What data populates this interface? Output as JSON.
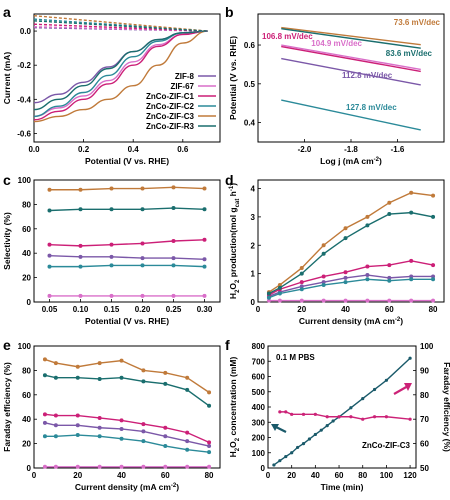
{
  "colors": {
    "ZIF-8": "#7b58a8",
    "ZIF-67": "#d96fc9",
    "ZnCo-ZIF-C1": "#cc1f77",
    "ZnCo-ZIF-C2": "#2b8a99",
    "ZnCo-ZIF-C3": "#c07a3a",
    "ZnCo-ZIF-R3": "#1a6e6e",
    "f_concentration": "#1a5a6a",
    "f_fe": "#cc2277"
  },
  "chart_data": [
    {
      "panel": "a",
      "type": "line",
      "xlabel": "Potential (V vs. RHE)",
      "ylabel": "Current (mA)",
      "xticks": [
        "0.0",
        "0.2",
        "0.4",
        "0.6"
      ],
      "yticks": [
        "-0.6",
        "-0.4",
        "-0.2",
        "0.0"
      ],
      "xlim": [
        0.0,
        0.75
      ],
      "ylim": [
        -0.65,
        0.1
      ],
      "legend": [
        "ZIF-8",
        "ZIF-67",
        "ZnCo-ZIF-C1",
        "ZnCo-ZIF-C2",
        "ZnCo-ZIF-C3",
        "ZnCo-ZIF-R3"
      ],
      "legend_position": "right",
      "series": [
        {
          "name": "ZIF-8",
          "x": [
            0.0,
            0.1,
            0.2,
            0.3,
            0.4,
            0.5,
            0.6,
            0.7
          ],
          "y": [
            -0.42,
            -0.37,
            -0.3,
            -0.21,
            -0.12,
            -0.05,
            -0.01,
            0.0
          ]
        },
        {
          "name": "ZIF-67",
          "x": [
            0.0,
            0.1,
            0.2,
            0.3,
            0.4,
            0.5,
            0.6,
            0.7
          ],
          "y": [
            -0.5,
            -0.45,
            -0.38,
            -0.29,
            -0.18,
            -0.08,
            -0.02,
            0.0
          ]
        },
        {
          "name": "ZnCo-ZIF-C1",
          "x": [
            0.0,
            0.1,
            0.2,
            0.3,
            0.4,
            0.5,
            0.6,
            0.7
          ],
          "y": [
            -0.52,
            -0.47,
            -0.4,
            -0.31,
            -0.2,
            -0.09,
            -0.02,
            0.0
          ]
        },
        {
          "name": "ZnCo-ZIF-C2",
          "x": [
            0.0,
            0.1,
            0.2,
            0.3,
            0.4,
            0.5,
            0.6,
            0.7
          ],
          "y": [
            -0.5,
            -0.44,
            -0.36,
            -0.26,
            -0.15,
            -0.06,
            -0.01,
            0.0
          ]
        },
        {
          "name": "ZnCo-ZIF-C3",
          "x": [
            0.0,
            0.1,
            0.2,
            0.3,
            0.4,
            0.5,
            0.6,
            0.7
          ],
          "y": [
            -0.53,
            -0.5,
            -0.46,
            -0.4,
            -0.32,
            -0.2,
            -0.07,
            0.0
          ]
        },
        {
          "name": "ZnCo-ZIF-R3",
          "x": [
            0.0,
            0.1,
            0.2,
            0.3,
            0.4,
            0.5,
            0.6,
            0.7
          ],
          "y": [
            -0.46,
            -0.4,
            -0.32,
            -0.22,
            -0.12,
            -0.05,
            -0.01,
            0.0
          ]
        }
      ],
      "ring_series": [
        {
          "name": "ZIF-8",
          "x": [
            0.0,
            0.7
          ],
          "y": [
            0.02,
            0.0
          ]
        },
        {
          "name": "ZIF-67",
          "x": [
            0.0,
            0.7
          ],
          "y": [
            0.025,
            0.0
          ]
        },
        {
          "name": "ZnCo-ZIF-C1",
          "x": [
            0.0,
            0.7
          ],
          "y": [
            0.04,
            0.0
          ]
        },
        {
          "name": "ZnCo-ZIF-C2",
          "x": [
            0.0,
            0.7
          ],
          "y": [
            0.07,
            0.0
          ]
        },
        {
          "name": "ZnCo-ZIF-C3",
          "x": [
            0.0,
            0.7
          ],
          "y": [
            0.09,
            0.0
          ]
        },
        {
          "name": "ZnCo-ZIF-R3",
          "x": [
            0.0,
            0.7
          ],
          "y": [
            0.06,
            0.0
          ]
        }
      ]
    },
    {
      "panel": "b",
      "type": "line",
      "xlabel": "Log j (mA cm",
      "xlabel_sup": "-2",
      "xlabel_end": ")",
      "ylabel": "Potential (V vs. RHE)",
      "xticks": [
        "-2.0",
        "-1.8",
        "-1.6"
      ],
      "yticks": [
        "0.4",
        "0.5",
        "0.6"
      ],
      "xlim": [
        -2.2,
        -1.4
      ],
      "ylim": [
        0.35,
        0.68
      ],
      "series": [
        {
          "name": "ZIF-8",
          "x": [
            -2.1,
            -1.5
          ],
          "y": [
            0.565,
            0.497
          ],
          "label": "112.8 mV/dec"
        },
        {
          "name": "ZIF-67",
          "x": [
            -2.1,
            -1.5
          ],
          "y": [
            0.6,
            0.537
          ],
          "label": "104.9 mV/dec"
        },
        {
          "name": "ZnCo-ZIF-C1",
          "x": [
            -2.1,
            -1.5
          ],
          "y": [
            0.596,
            0.532
          ],
          "label": "106.8 mV/dec"
        },
        {
          "name": "ZnCo-ZIF-C2",
          "x": [
            -2.1,
            -1.5
          ],
          "y": [
            0.458,
            0.381
          ],
          "label": "127.8 mV/dec"
        },
        {
          "name": "ZnCo-ZIF-C3",
          "x": [
            -2.1,
            -1.5
          ],
          "y": [
            0.645,
            0.601
          ],
          "label": "73.6 mV/dec"
        },
        {
          "name": "ZnCo-ZIF-R3",
          "x": [
            -2.1,
            -1.5
          ],
          "y": [
            0.642,
            0.592
          ],
          "label": "83.6 mV/dec"
        }
      ]
    },
    {
      "panel": "c",
      "type": "line",
      "xlabel": "Potential (V vs. RHE)",
      "ylabel": "Selectivity (%)",
      "xticks": [
        "0.05",
        "0.10",
        "0.15",
        "0.20",
        "0.25",
        "0.30"
      ],
      "yticks": [
        "0",
        "20",
        "40",
        "60",
        "80",
        "100"
      ],
      "xlim": [
        0.025,
        0.325
      ],
      "ylim": [
        0,
        100
      ],
      "x": [
        0.05,
        0.1,
        0.15,
        0.2,
        0.25,
        0.3
      ],
      "series": [
        {
          "name": "ZIF-8",
          "values": [
            38,
            37,
            37,
            36,
            36,
            35
          ]
        },
        {
          "name": "ZIF-67",
          "values": [
            5,
            5,
            5,
            5,
            5,
            5
          ]
        },
        {
          "name": "ZnCo-ZIF-C1",
          "values": [
            47,
            46,
            47,
            48,
            50,
            51
          ]
        },
        {
          "name": "ZnCo-ZIF-C2",
          "values": [
            29,
            29,
            30,
            30,
            30,
            29
          ]
        },
        {
          "name": "ZnCo-ZIF-C3",
          "values": [
            92,
            92,
            93,
            93,
            94,
            93
          ]
        },
        {
          "name": "ZnCo-ZIF-R3",
          "values": [
            75,
            76,
            76,
            76,
            77,
            76
          ]
        }
      ]
    },
    {
      "panel": "d",
      "type": "line",
      "xlabel": "Current density (mA cm",
      "xlabel_sup": "-2",
      "xlabel_end": ")",
      "ylabel_parts": [
        "H",
        "2",
        "O",
        "2",
        " production(mol g",
        "cat",
        " h",
        "-1",
        ")"
      ],
      "xticks": [
        "0",
        "20",
        "40",
        "60",
        "80"
      ],
      "yticks": [
        "0",
        "1",
        "2",
        "3",
        "4"
      ],
      "xlim": [
        0,
        85
      ],
      "ylim": [
        0,
        4.3
      ],
      "x": [
        5,
        10,
        20,
        30,
        40,
        50,
        60,
        70,
        80
      ],
      "series": [
        {
          "name": "ZIF-8",
          "values": [
            0.2,
            0.35,
            0.55,
            0.7,
            0.85,
            0.95,
            0.85,
            0.9,
            0.9
          ]
        },
        {
          "name": "ZIF-67",
          "values": [
            0.05,
            0.05,
            0.05,
            0.05,
            0.05,
            0.05,
            0.05,
            0.05,
            0.05
          ]
        },
        {
          "name": "ZnCo-ZIF-C1",
          "values": [
            0.25,
            0.45,
            0.7,
            0.9,
            1.05,
            1.25,
            1.3,
            1.45,
            1.3
          ]
        },
        {
          "name": "ZnCo-ZIF-C2",
          "values": [
            0.15,
            0.3,
            0.45,
            0.6,
            0.7,
            0.8,
            0.75,
            0.8,
            0.8
          ]
        },
        {
          "name": "ZnCo-ZIF-C3",
          "values": [
            0.35,
            0.6,
            1.2,
            2.0,
            2.6,
            3.0,
            3.5,
            3.85,
            3.75
          ]
        },
        {
          "name": "ZnCo-ZIF-R3",
          "values": [
            0.3,
            0.5,
            1.0,
            1.7,
            2.25,
            2.7,
            3.1,
            3.15,
            3.0
          ]
        }
      ]
    },
    {
      "panel": "e",
      "type": "line",
      "xlabel": "Current density (mA cm",
      "xlabel_sup": "-2",
      "xlabel_end": ")",
      "ylabel": "Faraday efficiency (%)",
      "xticks": [
        "0",
        "20",
        "40",
        "60",
        "80"
      ],
      "yticks": [
        "0",
        "20",
        "40",
        "60",
        "80",
        "100"
      ],
      "xlim": [
        0,
        85
      ],
      "ylim": [
        0,
        100
      ],
      "x": [
        5,
        10,
        20,
        30,
        40,
        50,
        60,
        70,
        80
      ],
      "series": [
        {
          "name": "ZIF-8",
          "values": [
            37,
            35,
            35,
            33,
            32,
            30,
            26,
            22,
            18
          ]
        },
        {
          "name": "ZIF-67",
          "values": [
            1,
            1,
            1,
            1,
            1,
            1,
            1,
            1,
            1
          ]
        },
        {
          "name": "ZnCo-ZIF-C1",
          "values": [
            44,
            43,
            43,
            41,
            39,
            36,
            33,
            29,
            21
          ]
        },
        {
          "name": "ZnCo-ZIF-C2",
          "values": [
            26,
            26,
            27,
            26,
            24,
            22,
            18,
            15,
            13
          ]
        },
        {
          "name": "ZnCo-ZIF-C3",
          "values": [
            89,
            86,
            83,
            86,
            88,
            80,
            78,
            74,
            62
          ]
        },
        {
          "name": "ZnCo-ZIF-R3",
          "values": [
            76,
            74,
            74,
            73,
            74,
            71,
            69,
            64,
            51
          ]
        }
      ]
    },
    {
      "panel": "f",
      "type": "line",
      "xlabel": "Time (min)",
      "ylabel_parts": [
        "H",
        "2",
        "O",
        "2",
        " concentration (mM)"
      ],
      "ylabel_right": "Faraday efficiency (%)",
      "xticks": [
        "0",
        "20",
        "40",
        "60",
        "80",
        "100",
        "120"
      ],
      "yticks_left": [
        "0",
        "100",
        "200",
        "300",
        "400",
        "500",
        "600",
        "700",
        "800"
      ],
      "yticks_right": [
        "50",
        "60",
        "70",
        "80",
        "90",
        "100"
      ],
      "xlim": [
        0,
        125
      ],
      "ylim_left": [
        0,
        800
      ],
      "ylim_right": [
        50,
        100
      ],
      "annotations": [
        "0.1 M PBS",
        "ZnCo-ZIF-C3"
      ],
      "concentration": {
        "x": [
          5,
          10,
          15,
          20,
          25,
          30,
          35,
          40,
          45,
          50,
          55,
          60,
          70,
          80,
          90,
          100,
          120
        ],
        "values": [
          20,
          48,
          75,
          100,
          135,
          160,
          190,
          220,
          248,
          278,
          308,
          335,
          395,
          455,
          515,
          575,
          720
        ]
      },
      "faraday": {
        "x": [
          10,
          15,
          20,
          30,
          40,
          50,
          60,
          70,
          80,
          90,
          100,
          120
        ],
        "values": [
          73,
          73,
          72,
          72,
          72,
          71,
          71,
          71,
          70,
          71,
          71,
          70
        ]
      }
    }
  ]
}
